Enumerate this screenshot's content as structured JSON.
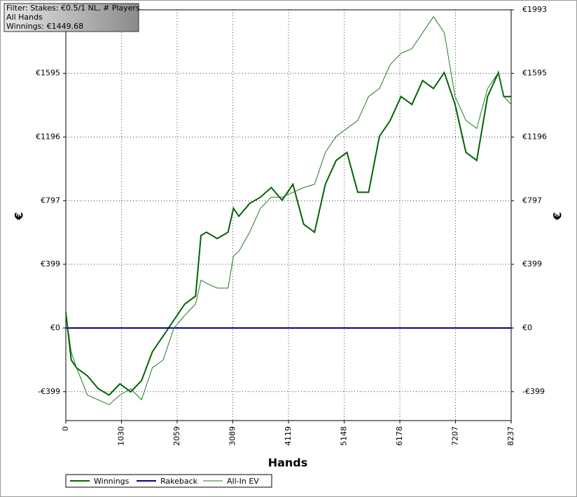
{
  "chart_data": {
    "type": "line",
    "info": [
      "Filter: Stakes: €0.5/1 NL, # Players",
      "All Hands",
      "Winnings: €1449.68"
    ],
    "xlabel": "Hands",
    "ylabel": "€",
    "x": [
      0,
      100,
      200,
      400,
      600,
      800,
      1000,
      1200,
      1400,
      1600,
      1800,
      2000,
      2200,
      2400,
      2500,
      2600,
      2800,
      3000,
      3100,
      3200,
      3400,
      3600,
      3800,
      4000,
      4200,
      4400,
      4600,
      4800,
      5000,
      5200,
      5400,
      5600,
      5800,
      6000,
      6200,
      6400,
      6600,
      6800,
      7000,
      7200,
      7400,
      7600,
      7800,
      8000,
      8100,
      8237
    ],
    "series": [
      {
        "name": "Winnings",
        "color": "#006400",
        "width": 2,
        "values": [
          100,
          -200,
          -250,
          -300,
          -380,
          -420,
          -350,
          -400,
          -330,
          -150,
          -50,
          50,
          150,
          200,
          580,
          600,
          560,
          600,
          750,
          700,
          780,
          820,
          880,
          800,
          900,
          650,
          600,
          900,
          1050,
          1100,
          850,
          850,
          1200,
          1300,
          1450,
          1400,
          1550,
          1500,
          1600,
          1400,
          1100,
          1050,
          1450,
          1600,
          1450,
          1449.68
        ]
      },
      {
        "name": "Rakeback",
        "color": "#000080",
        "width": 2,
        "values": [
          0,
          0,
          0,
          0,
          0,
          0,
          0,
          0,
          0,
          0,
          0,
          0,
          0,
          0,
          0,
          0,
          0,
          0,
          0,
          0,
          0,
          0,
          0,
          0,
          0,
          0,
          0,
          0,
          0,
          0,
          0,
          0,
          0,
          0,
          0,
          0,
          0,
          0,
          0,
          0,
          0,
          0,
          0,
          0,
          0,
          0
        ]
      },
      {
        "name": "All-In EV",
        "color": "#1f7a1f",
        "width": 1,
        "values": [
          100,
          -150,
          -250,
          -420,
          -450,
          -480,
          -420,
          -380,
          -450,
          -250,
          -200,
          0,
          80,
          150,
          300,
          280,
          250,
          250,
          450,
          480,
          600,
          750,
          820,
          820,
          850,
          880,
          900,
          1100,
          1200,
          1250,
          1300,
          1450,
          1500,
          1650,
          1720,
          1750,
          1850,
          1950,
          1850,
          1450,
          1300,
          1250,
          1500,
          1600,
          1450,
          1400
        ]
      }
    ],
    "xlim": [
      0,
      8237
    ],
    "xticks": [
      0,
      1030,
      2059,
      3089,
      4119,
      5148,
      6178,
      7207,
      8237
    ],
    "ylim": [
      -580,
      1993
    ],
    "yticks": [
      {
        "value": -399,
        "label": "-€399"
      },
      {
        "value": 0,
        "label": "€0"
      },
      {
        "value": 399,
        "label": "€399"
      },
      {
        "value": 797,
        "label": "€797"
      },
      {
        "value": 1196,
        "label": "€1196"
      },
      {
        "value": 1595,
        "label": "€1595"
      },
      {
        "value": 1993,
        "label": "€1993"
      }
    ],
    "grid": true
  }
}
